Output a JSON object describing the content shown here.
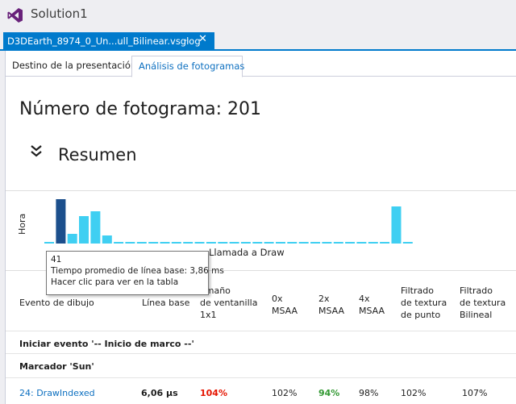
{
  "app": {
    "title": "Solution1"
  },
  "document_tab": {
    "label": "D3DEarth_8974_0_Un...ull_Bilinear.vsglog",
    "pin_glyph": "-ᵢ",
    "close_glyph": "✕"
  },
  "subtabs": [
    {
      "label": "Destino de la presentación",
      "active": false
    },
    {
      "label": "Análisis de fotogramas",
      "active": true
    }
  ],
  "frame": {
    "title": "Número de fotograma: 201"
  },
  "summary": {
    "heading": "Resumen"
  },
  "chart_data": {
    "type": "bar",
    "xlabel": "Llamada a Draw",
    "ylabel": "Hora",
    "values": [
      0,
      55,
      12,
      34,
      40,
      10,
      0,
      0,
      0,
      0,
      0,
      0,
      0,
      0,
      0,
      0,
      0,
      0,
      0,
      0,
      0,
      0,
      0,
      0,
      0,
      0,
      0,
      0,
      0,
      0,
      46,
      0
    ],
    "selected_index": 1,
    "colors": {
      "bar": "#3fcff2",
      "selected": "#1c4f8c"
    }
  },
  "tooltip": {
    "line1": "41",
    "line2": "Tiempo promedio de línea base: 3,86 ms",
    "line3": "Hacer clic para ver en la tabla"
  },
  "table": {
    "headers": {
      "evento": "Evento de dibujo",
      "base": "Línea base",
      "ventanilla": [
        "amaño",
        "de ventanilla",
        "1x1"
      ],
      "msaa0": [
        "0x",
        "MSAA"
      ],
      "msaa2": [
        "2x",
        "MSAA"
      ],
      "msaa4": [
        "4x",
        "MSAA"
      ],
      "punto": [
        "Filtrado",
        "de textura",
        "de punto"
      ],
      "bilineal": [
        "Filtrado",
        "de textura",
        "Bilineal"
      ]
    },
    "rows": [
      {
        "label": "Iniciar evento '-- Inicio de marco --'"
      },
      {
        "label": "Marcador 'Sun'"
      }
    ],
    "draw_row": {
      "name": "24: DrawIndexed",
      "base": "6,06 µs",
      "ventanilla": "104%",
      "msaa0": "102%",
      "msaa2": "94%",
      "msaa4": "98%",
      "punto": "102%",
      "bilineal": "107%"
    }
  }
}
